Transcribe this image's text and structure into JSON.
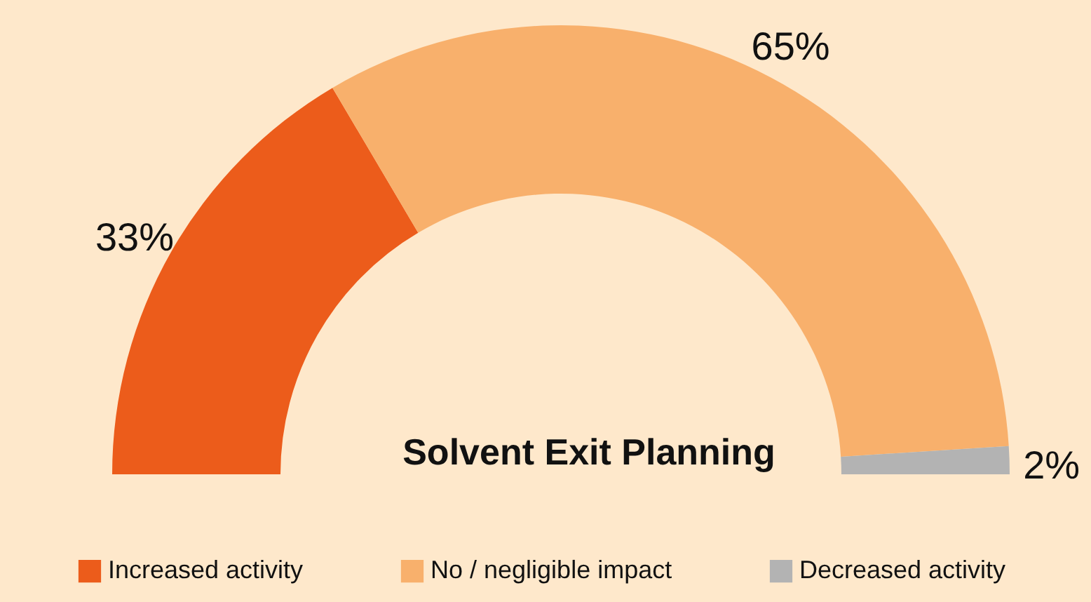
{
  "chart_data": {
    "type": "donut",
    "title": "Solvent Exit Planning",
    "categories": [
      "Increased activity",
      "No / negligible impact",
      "Decreased activity"
    ],
    "values": [
      33,
      65,
      2
    ],
    "colors": [
      "#ec5c1b",
      "#f8b06c",
      "#b3b3b3"
    ],
    "value_labels": [
      "33%",
      "65%",
      "2%"
    ],
    "legend": "bottom"
  }
}
